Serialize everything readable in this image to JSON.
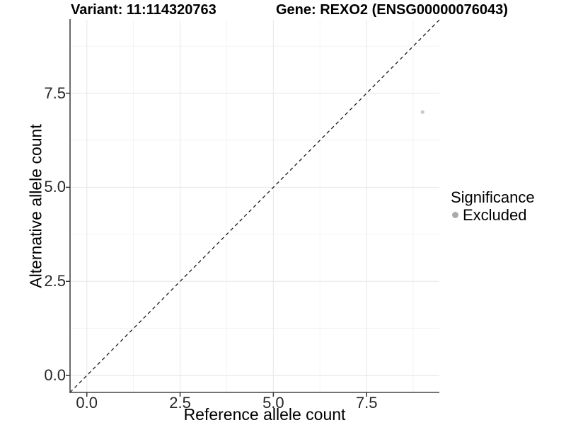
{
  "chart_data": {
    "type": "scatter",
    "title_left": "Variant: 11:114320763",
    "title_right": "Gene: REXO2 (ENSG00000076043)",
    "xlabel": "Reference allele count",
    "ylabel": "Alternative allele count",
    "axis_range": [
      -0.45,
      9.45
    ],
    "x_ticks": {
      "labels": [
        "0.0",
        "2.5",
        "5.0",
        "7.5"
      ],
      "values": [
        0,
        2.5,
        5,
        7.5
      ]
    },
    "y_ticks": {
      "labels": [
        "0.0",
        "2.5",
        "5.0",
        "7.5"
      ],
      "values": [
        0,
        2.5,
        5,
        7.5
      ]
    },
    "x_minor": [
      1.25,
      3.75,
      6.25,
      8.75
    ],
    "y_minor": [
      1.25,
      3.75,
      6.25,
      8.75
    ],
    "grid": true,
    "points": [
      {
        "x": 9,
        "y": 7,
        "significance": "Excluded"
      }
    ],
    "reference_line": {
      "type": "identity",
      "slope": 1,
      "intercept": 0,
      "style": "dashed",
      "color": "#1a1a1a"
    },
    "legend": {
      "title": "Significance",
      "position": "right",
      "items": [
        {
          "label": "Excluded",
          "color": "#ababab"
        }
      ]
    },
    "colors": {
      "background": "#ffffff",
      "grid_major": "#e9e9e9",
      "grid_minor": "#f3f3f3",
      "axis_line": "#454545",
      "tick_mark": "#333333",
      "point_excluded": "#c8c8c8",
      "text": "#000000"
    }
  }
}
